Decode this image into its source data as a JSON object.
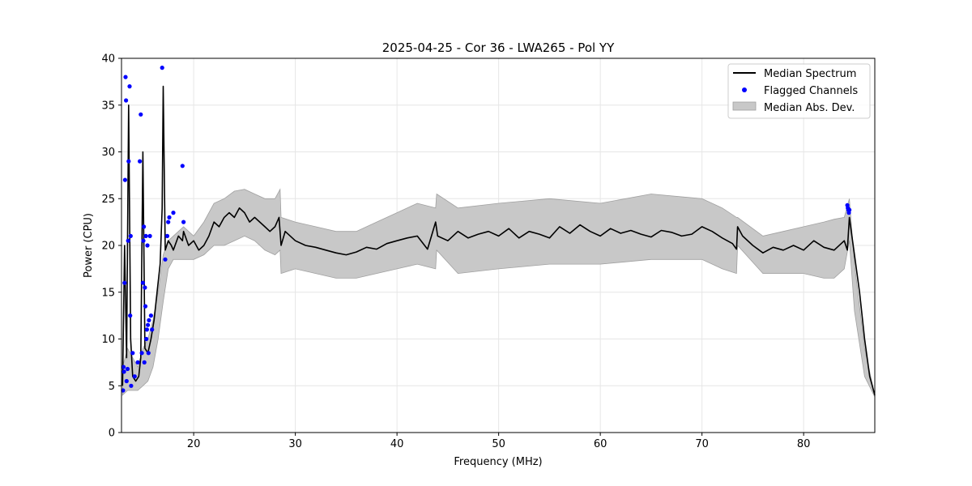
{
  "chart_data": {
    "type": "line",
    "title": "2025-04-25 - Cor 36 - LWA265 - Pol YY",
    "xlabel": "Frequency (MHz)",
    "ylabel": "Power (CPU)",
    "xlim": [
      12.9,
      87.0
    ],
    "ylim": [
      0,
      40
    ],
    "xticks": [
      20,
      30,
      40,
      50,
      60,
      70,
      80
    ],
    "yticks": [
      0,
      5,
      10,
      15,
      20,
      25,
      30,
      35,
      40
    ],
    "grid": true,
    "legend_position": "top-right",
    "legend": [
      "Median Spectrum",
      "Flagged Channels",
      "Median Abs. Dev."
    ],
    "colors": {
      "line": "#000000",
      "flagged": "#0000ff",
      "band": "#c8c8c8",
      "band_edge": "#a0a0a0",
      "grid": "#e6e6e6"
    },
    "series": [
      {
        "name": "Median Spectrum",
        "x": [
          13.0,
          13.2,
          13.4,
          13.6,
          13.8,
          14.0,
          14.3,
          14.6,
          14.8,
          15.0,
          15.2,
          15.5,
          15.8,
          16.1,
          16.4,
          16.7,
          16.9,
          17.0,
          17.2,
          17.5,
          17.8,
          18.0,
          18.5,
          18.9,
          19.0,
          19.5,
          20.0,
          20.5,
          21.0,
          21.5,
          22.0,
          22.5,
          23.0,
          23.5,
          24.0,
          24.5,
          25.0,
          25.5,
          26.0,
          26.5,
          27.0,
          27.5,
          28.0,
          28.4,
          28.6,
          29.0,
          30.0,
          31.0,
          32.0,
          33.0,
          34.0,
          35.0,
          36.0,
          37.0,
          38.0,
          39.0,
          40.0,
          41.0,
          42.0,
          43.0,
          43.8,
          44.0,
          45.0,
          46.0,
          47.0,
          48.0,
          49.0,
          50.0,
          51.0,
          52.0,
          53.0,
          54.0,
          55.0,
          56.0,
          57.0,
          58.0,
          59.0,
          60.0,
          61.0,
          62.0,
          63.0,
          64.0,
          65.0,
          66.0,
          67.0,
          68.0,
          69.0,
          70.0,
          71.0,
          72.0,
          73.0,
          73.4,
          73.5,
          74.0,
          75.0,
          76.0,
          77.0,
          78.0,
          79.0,
          80.0,
          81.0,
          82.0,
          83.0,
          84.0,
          84.3,
          84.5,
          85.0,
          85.5,
          86.0,
          86.5,
          87.0
        ],
        "values": [
          5.0,
          20.0,
          8.0,
          35.0,
          10.0,
          6.0,
          5.5,
          6.0,
          8.0,
          30.0,
          9.0,
          8.5,
          10.0,
          12.0,
          15.0,
          18.0,
          24.0,
          37.0,
          19.5,
          20.5,
          20.0,
          19.5,
          21.0,
          20.5,
          21.5,
          20.0,
          20.5,
          19.5,
          20.0,
          21.0,
          22.5,
          22.0,
          23.0,
          23.5,
          23.0,
          24.0,
          23.5,
          22.5,
          23.0,
          22.5,
          22.0,
          21.5,
          22.0,
          23.0,
          20.0,
          21.5,
          20.5,
          20.0,
          19.8,
          19.5,
          19.2,
          19.0,
          19.3,
          19.8,
          19.6,
          20.2,
          20.5,
          20.8,
          21.0,
          19.6,
          22.5,
          21.0,
          20.5,
          21.5,
          20.8,
          21.2,
          21.5,
          21.0,
          21.8,
          20.8,
          21.5,
          21.2,
          20.8,
          22.0,
          21.3,
          22.2,
          21.5,
          21.0,
          21.8,
          21.3,
          21.6,
          21.2,
          20.9,
          21.6,
          21.4,
          21.0,
          21.2,
          22.0,
          21.5,
          20.8,
          20.2,
          19.6,
          22.0,
          21.0,
          20.0,
          19.2,
          19.8,
          19.5,
          20.0,
          19.5,
          20.5,
          19.8,
          19.5,
          20.5,
          19.5,
          23.0,
          19.0,
          15.0,
          10.0,
          6.0,
          4.0
        ]
      },
      {
        "name": "Median Abs. Dev.",
        "x": [
          13.0,
          13.5,
          14.0,
          14.5,
          15.0,
          15.5,
          16.0,
          16.5,
          17.0,
          17.5,
          18.0,
          19.0,
          20.0,
          21.0,
          22.0,
          23.0,
          24.0,
          25.0,
          26.0,
          27.0,
          28.0,
          28.5,
          28.6,
          30.0,
          32.0,
          34.0,
          36.0,
          38.0,
          40.0,
          42.0,
          43.8,
          43.9,
          46.0,
          50.0,
          55.0,
          60.0,
          65.0,
          70.0,
          72.0,
          73.4,
          73.5,
          76.0,
          78.0,
          80.0,
          82.0,
          83.0,
          84.0,
          84.5,
          85.0,
          86.0,
          87.0
        ],
        "upper": [
          7.0,
          9.0,
          8.0,
          7.0,
          9.0,
          10.0,
          12.0,
          15.0,
          19.0,
          20.5,
          21.0,
          22.0,
          21.0,
          22.5,
          24.5,
          25.0,
          25.8,
          26.0,
          25.5,
          25.0,
          25.0,
          26.0,
          23.0,
          22.5,
          22.0,
          21.5,
          21.5,
          22.5,
          23.5,
          24.5,
          24.0,
          25.5,
          24.0,
          24.5,
          25.0,
          24.5,
          25.5,
          25.0,
          24.0,
          23.0,
          23.0,
          21.0,
          21.5,
          22.0,
          22.5,
          22.8,
          23.0,
          25.0,
          18.0,
          9.0,
          4.0
        ],
        "lower": [
          4.0,
          4.5,
          4.5,
          4.5,
          5.0,
          5.5,
          7.0,
          10.0,
          14.0,
          17.5,
          18.5,
          18.5,
          18.5,
          19.0,
          20.0,
          20.0,
          20.5,
          21.0,
          20.5,
          19.5,
          19.0,
          19.5,
          17.0,
          17.5,
          17.0,
          16.5,
          16.5,
          17.0,
          17.5,
          18.0,
          17.5,
          19.5,
          17.0,
          17.5,
          18.0,
          18.0,
          18.5,
          18.5,
          17.5,
          17.0,
          20.0,
          17.0,
          17.0,
          17.0,
          16.5,
          16.5,
          17.5,
          20.5,
          13.0,
          6.0,
          3.8
        ]
      },
      {
        "name": "Flagged Channels",
        "x": [
          13.05,
          13.1,
          13.15,
          13.2,
          13.25,
          13.3,
          13.35,
          13.4,
          13.5,
          13.55,
          13.6,
          13.7,
          13.75,
          13.8,
          13.85,
          14.0,
          14.2,
          14.5,
          14.7,
          14.8,
          14.9,
          15.0,
          15.05,
          15.1,
          15.15,
          15.2,
          15.25,
          15.3,
          15.35,
          15.4,
          15.45,
          15.5,
          15.55,
          15.6,
          15.7,
          15.8,
          15.9,
          16.9,
          17.2,
          17.4,
          17.5,
          17.6,
          18.0,
          18.9,
          19.0,
          84.3,
          84.35,
          84.4,
          84.45,
          84.5
        ],
        "values": [
          4.5,
          7.0,
          6.5,
          16.0,
          27.0,
          38.0,
          35.5,
          5.5,
          6.8,
          20.5,
          29.0,
          37.0,
          12.5,
          21.0,
          5.0,
          8.5,
          6.0,
          7.5,
          29.0,
          34.0,
          8.5,
          16.0,
          20.5,
          22.0,
          7.5,
          15.5,
          13.5,
          21.0,
          10.0,
          11.0,
          20.0,
          11.5,
          8.5,
          12.0,
          21.0,
          12.5,
          11.0,
          39.0,
          18.5,
          21.0,
          22.5,
          23.0,
          23.5,
          28.5,
          22.5,
          24.3,
          24.0,
          23.8,
          23.5,
          23.8
        ]
      }
    ]
  }
}
